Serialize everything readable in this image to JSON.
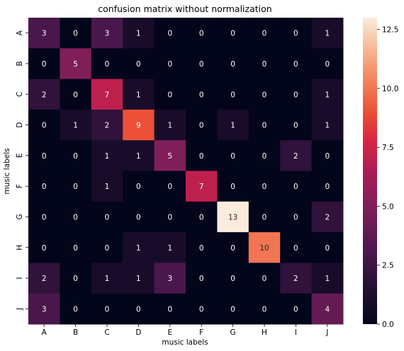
{
  "chart_data": {
    "type": "heatmap",
    "title": "confusion matrix without normalization",
    "xlabel": "music labels",
    "ylabel": "music labels",
    "x_categories": [
      "A",
      "B",
      "C",
      "D",
      "E",
      "F",
      "G",
      "H",
      "I",
      "J"
    ],
    "y_categories": [
      "A",
      "B",
      "C",
      "D",
      "E",
      "F",
      "G",
      "H",
      "I",
      "J"
    ],
    "matrix": [
      [
        3,
        0,
        3,
        1,
        0,
        0,
        0,
        0,
        0,
        1
      ],
      [
        0,
        5,
        0,
        0,
        0,
        0,
        0,
        0,
        0,
        0
      ],
      [
        2,
        0,
        7,
        1,
        0,
        0,
        0,
        0,
        0,
        1
      ],
      [
        0,
        1,
        2,
        9,
        1,
        0,
        1,
        0,
        0,
        1
      ],
      [
        0,
        0,
        1,
        1,
        5,
        0,
        0,
        0,
        2,
        0
      ],
      [
        0,
        0,
        1,
        0,
        0,
        7,
        0,
        0,
        0,
        0
      ],
      [
        0,
        0,
        0,
        0,
        0,
        0,
        13,
        0,
        0,
        2
      ],
      [
        0,
        0,
        0,
        1,
        1,
        0,
        0,
        10,
        0,
        0
      ],
      [
        2,
        0,
        1,
        1,
        3,
        0,
        0,
        0,
        2,
        1
      ],
      [
        3,
        0,
        0,
        0,
        0,
        0,
        0,
        0,
        0,
        4
      ]
    ],
    "value_range": [
      0,
      13
    ],
    "colorscale": "rocket",
    "colorbar_ticks": [
      "0.0",
      "2.5",
      "5.0",
      "7.5",
      "10.0",
      "12.5"
    ],
    "colorbar_tick_values": [
      0,
      2.5,
      5,
      7.5,
      10,
      12.5
    ]
  }
}
